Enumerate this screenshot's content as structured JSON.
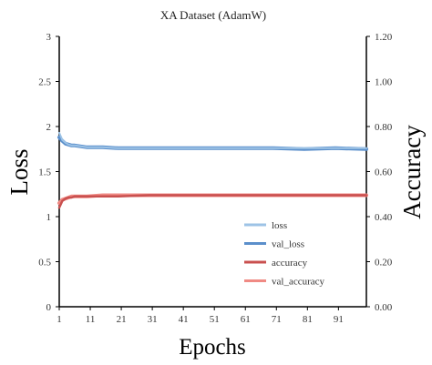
{
  "chart_data": {
    "type": "line",
    "title": "XA Dataset (AdamW)",
    "xlabel": "Epochs",
    "ylabel": "Loss",
    "y2label": "Accuracy",
    "xlim": [
      1,
      100
    ],
    "ylim": [
      0,
      3
    ],
    "y2lim": [
      0,
      1.2
    ],
    "x_ticks": [
      1,
      11,
      21,
      31,
      41,
      51,
      61,
      71,
      81,
      91
    ],
    "y_ticks": [
      "0",
      "0.5",
      "1",
      "1.5",
      "2",
      "2.5",
      "3"
    ],
    "y2_ticks": [
      "0.00",
      "0.20",
      "0.40",
      "0.60",
      "0.80",
      "1.00",
      "1.20"
    ],
    "grid": false,
    "legend_position": "lower-right",
    "colors": {
      "loss": "#9dc3e6",
      "val_loss": "#5b8fcb",
      "accuracy": "#c9504f",
      "val_accuracy": "#f08a84"
    },
    "series": [
      {
        "name": "loss",
        "axis": "left",
        "x": [
          1,
          2,
          3,
          4,
          5,
          6,
          8,
          10,
          15,
          20,
          30,
          40,
          50,
          60,
          70,
          80,
          90,
          100
        ],
        "values": [
          1.93,
          1.85,
          1.82,
          1.8,
          1.79,
          1.79,
          1.78,
          1.77,
          1.77,
          1.76,
          1.76,
          1.76,
          1.76,
          1.76,
          1.76,
          1.76,
          1.76,
          1.76
        ]
      },
      {
        "name": "val_loss",
        "axis": "left",
        "x": [
          1,
          2,
          3,
          4,
          5,
          6,
          8,
          10,
          15,
          20,
          30,
          40,
          50,
          60,
          70,
          80,
          90,
          100
        ],
        "values": [
          1.88,
          1.84,
          1.81,
          1.8,
          1.79,
          1.79,
          1.78,
          1.77,
          1.77,
          1.76,
          1.76,
          1.76,
          1.76,
          1.76,
          1.76,
          1.75,
          1.76,
          1.75
        ]
      },
      {
        "name": "accuracy",
        "axis": "right",
        "x": [
          1,
          2,
          3,
          4,
          5,
          6,
          8,
          10,
          15,
          20,
          30,
          40,
          50,
          60,
          70,
          80,
          90,
          100
        ],
        "values": [
          0.44,
          0.47,
          0.48,
          0.485,
          0.485,
          0.49,
          0.49,
          0.49,
          0.49,
          0.49,
          0.495,
          0.495,
          0.495,
          0.495,
          0.495,
          0.495,
          0.495,
          0.495
        ]
      },
      {
        "name": "val_accuracy",
        "axis": "right",
        "x": [
          1,
          2,
          3,
          4,
          5,
          6,
          8,
          10,
          15,
          20,
          30,
          40,
          50,
          60,
          70,
          80,
          90,
          100
        ],
        "values": [
          0.46,
          0.475,
          0.48,
          0.485,
          0.49,
          0.49,
          0.49,
          0.49,
          0.495,
          0.495,
          0.495,
          0.495,
          0.495,
          0.495,
          0.495,
          0.495,
          0.495,
          0.495
        ]
      }
    ]
  }
}
